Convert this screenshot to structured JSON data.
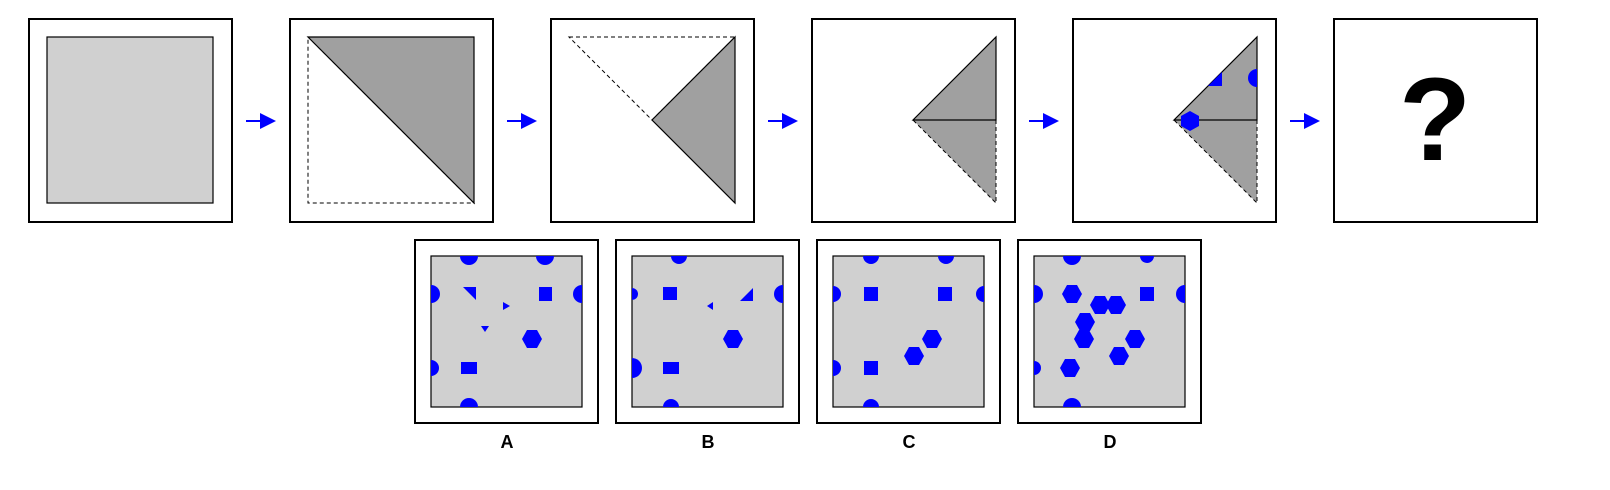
{
  "question_mark": "?",
  "options": [
    {
      "label": "A"
    },
    {
      "label": "B"
    },
    {
      "label": "C"
    },
    {
      "label": "D"
    }
  ],
  "colors": {
    "paper_gray": "#d0d0d0",
    "fold_gray": "#a0a0a0",
    "punch_blue": "#0000ff",
    "arrow_blue": "#0000ff",
    "frame_black": "#000000"
  },
  "icons": {
    "arrow": "right-arrow-icon",
    "hole_shapes": [
      "circle",
      "square",
      "hexagon",
      "triangle"
    ]
  }
}
